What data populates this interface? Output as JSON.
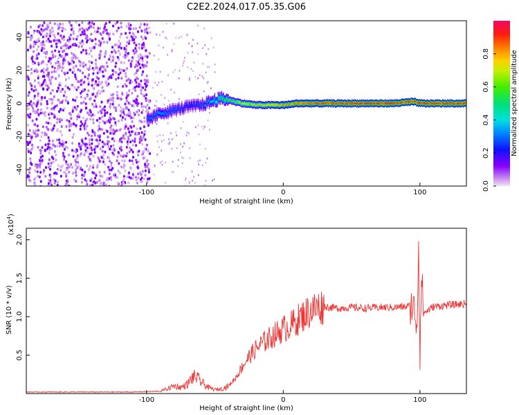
{
  "title": "C2E2.2024.017.05.35.G06",
  "chart_data": [
    {
      "type": "heatmap",
      "xlabel": "Height of straight line (km)",
      "ylabel": "Frequency (Hz)",
      "xlim": [
        -188,
        134
      ],
      "ylim": [
        -50,
        50
      ],
      "xticks": [
        -100,
        0,
        100
      ],
      "xtick_labels": [
        "-100",
        "0",
        "100"
      ],
      "yticks": [
        -40,
        -20,
        0,
        20,
        40
      ],
      "ytick_labels": [
        "-40",
        "-20",
        "0",
        "20",
        "40"
      ],
      "colorbar": {
        "label": "Normalized spectral amplitude",
        "range": [
          0,
          1
        ],
        "ticks": [
          0.0,
          0.2,
          0.4,
          0.6,
          0.8
        ],
        "tick_labels": [
          "0.0",
          "0.2",
          "0.4",
          "0.6",
          "0.8"
        ],
        "colormap": "rainbow (red at 1.0 to violet at 0.0)"
      },
      "signal_trace": {
        "x": [
          -100,
          -90,
          -80,
          -70,
          -60,
          -50,
          -45,
          -40,
          -35,
          -30,
          -20,
          -10,
          0,
          10,
          20,
          40,
          60,
          80,
          95,
          100,
          134
        ],
        "frequency": [
          -10,
          -6,
          -4,
          -2,
          -1,
          2,
          3,
          2,
          1,
          0,
          -1,
          -1,
          -1,
          0,
          0,
          0,
          0,
          0,
          1,
          0,
          0
        ],
        "peak_amplitude": [
          0.3,
          0.35,
          0.3,
          0.25,
          0.3,
          0.45,
          0.55,
          0.6,
          0.65,
          0.7,
          0.75,
          0.8,
          0.85,
          0.9,
          0.92,
          0.95,
          0.97,
          0.98,
          0.95,
          0.98,
          0.98
        ]
      },
      "noise_region": {
        "x_range": [
          -188,
          -98
        ],
        "frequency_range": [
          -50,
          50
        ],
        "amplitude": "0.05-0.15"
      },
      "grid": false
    },
    {
      "type": "line",
      "xlabel": "Height of straight line (km)",
      "ylabel": "SNR (10 * v/v)",
      "y_scale_label": "(x10",
      "y_scale_exponent": "4",
      "y_scale_suffix": ")",
      "xlim": [
        -188,
        134
      ],
      "ylim": [
        0,
        2.15
      ],
      "xticks": [
        -100,
        0,
        100
      ],
      "xtick_labels": [
        "-100",
        "0",
        "100"
      ],
      "yticks": [
        0.5,
        1.0,
        1.5,
        2.0
      ],
      "ytick_labels": [
        "0.5",
        "1.0",
        "1.5",
        "2.0"
      ],
      "color": "#ee3333",
      "envelope": {
        "x": [
          -188,
          -150,
          -110,
          -90,
          -85,
          -80,
          -75,
          -70,
          -67,
          -64,
          -60,
          -55,
          -50,
          -45,
          -40,
          -35,
          -30,
          -25,
          -20,
          -15,
          -10,
          -5,
          0,
          5,
          10,
          15,
          20,
          25,
          30,
          40,
          50,
          60,
          70,
          80,
          90,
          95,
          98,
          99,
          100,
          101,
          103,
          110,
          120,
          134
        ],
        "y": [
          0.02,
          0.02,
          0.02,
          0.03,
          0.06,
          0.1,
          0.08,
          0.12,
          0.2,
          0.22,
          0.15,
          0.08,
          0.05,
          0.06,
          0.1,
          0.2,
          0.35,
          0.48,
          0.58,
          0.66,
          0.72,
          0.78,
          0.84,
          0.88,
          0.95,
          1.02,
          1.08,
          1.12,
          1.13,
          1.11,
          1.12,
          1.11,
          1.12,
          1.12,
          1.13,
          1.15,
          0.9,
          2.0,
          0.5,
          1.5,
          1.05,
          1.13,
          1.15,
          1.17
        ]
      },
      "grid": false
    }
  ]
}
